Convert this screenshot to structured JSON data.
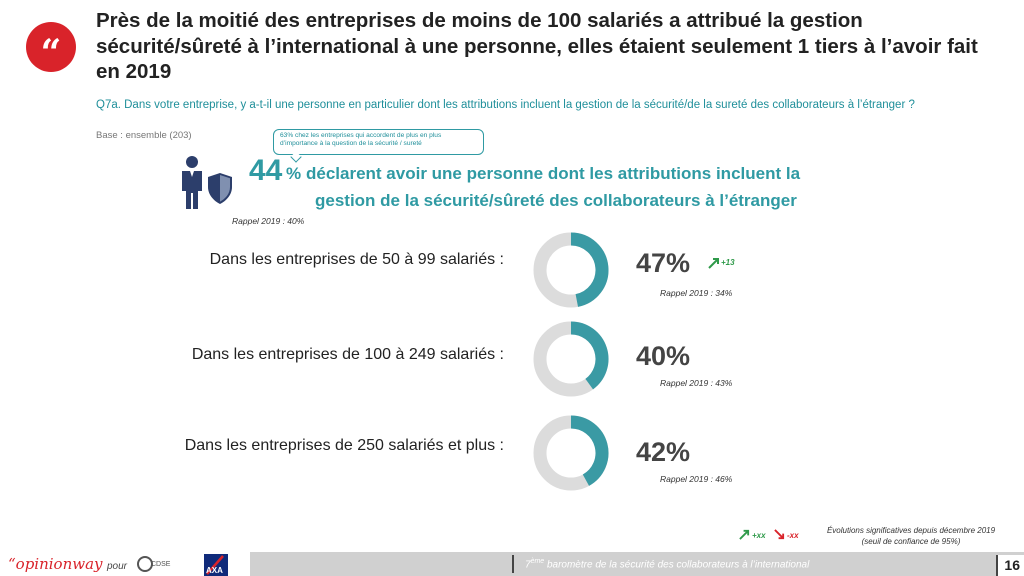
{
  "title": "Près de la moitié des entreprises de moins de 100 salariés a attribué la gestion sécurité/sûreté à l’international à une personne, elles étaient seulement 1 tiers à l’avoir fait en 2019",
  "quote_glyph": "“",
  "question": "Q7a. Dans votre entreprise, y a-t-il une personne en particulier dont les attributions incluent la gestion de la sécurité/de la sureté des collaborateurs à l’étranger ?",
  "base": "Base : ensemble (203)",
  "callout": "63% chez les entreprises qui accordent de plus en plus d’importance à la question de la sécurité / sureté",
  "headline": {
    "value": "44",
    "pct_sign": "%",
    "line1": "déclarent avoir une personne dont les attributions incluent la",
    "line2": "gestion de la sécurité/sûreté des collaborateurs à l’étranger",
    "rappel": "Rappel 2019 : 40%"
  },
  "chart_data": {
    "type": "donut",
    "categories": [
      "Dans les entreprises de 50 à 99 salariés :",
      "Dans les entreprises de 100 à 249 salariés :",
      "Dans les entreprises de 250 salariés et plus :"
    ],
    "values": [
      47,
      40,
      42
    ],
    "value_labels": [
      "47%",
      "40%",
      "42%"
    ],
    "rappel_2019": [
      "Rappel 2019 : 34%",
      "Rappel 2019 : 43%",
      "Rappel 2019 : 46%"
    ],
    "evolutions": [
      "+13",
      "",
      ""
    ],
    "colors": {
      "fill": "#3a9aa4",
      "track": "#dcdcdc",
      "up": "#2f9a4a",
      "down": "#d9232a"
    }
  },
  "legend": {
    "up_label": "+xx",
    "down_label": "-xx",
    "note_line1": "Évolutions significatives depuis décembre 2019",
    "note_line2": "(seuil de confiance de 95%)"
  },
  "footer": {
    "brand": "“opinionway",
    "pour": "pour",
    "cdse_logo": "CDSE",
    "axa_logo": "AXA",
    "ordinal": "7",
    "ordinal_sup": "ème",
    "text": " baromètre de la sécurité des collaborateurs à l’international",
    "page": "16"
  }
}
